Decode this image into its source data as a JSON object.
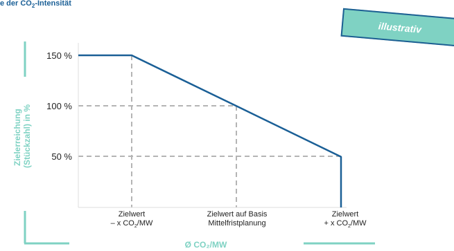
{
  "title": {
    "prefix": "e der CO",
    "subscript": "2",
    "suffix": "-Intensität"
  },
  "stamp": {
    "label": "illustrativ"
  },
  "chart_data": {
    "type": "line",
    "ylabel_lines": [
      "Zielerreichung",
      "(Stückzahl) in %"
    ],
    "xlabel": "Ø CO₂/MW",
    "yticks": [
      {
        "value": 150,
        "label": "150 %"
      },
      {
        "value": 100,
        "label": "100 %"
      },
      {
        "value": 50,
        "label": "50 %"
      }
    ],
    "categories": [
      {
        "line1": "Zielwert",
        "line2_prefix": "– x CO",
        "line2_sub": "2",
        "line2_suffix": "/MW"
      },
      {
        "line1": "Zielwert auf Basis",
        "line2_prefix": "Mittelfristplanung",
        "line2_sub": "",
        "line2_suffix": ""
      },
      {
        "line1": "Zielwert",
        "line2_prefix": "+ x CO",
        "line2_sub": "2",
        "line2_suffix": "/MW"
      }
    ],
    "series": [
      {
        "points": [
          {
            "x": "start",
            "y": 150
          },
          {
            "x": "Zielwert – x CO2/MW",
            "y": 150
          },
          {
            "x": "Zielwert auf Basis Mittelfristplanung",
            "y": 100
          },
          {
            "x": "Zielwert + x CO2/MW",
            "y": 50
          },
          {
            "x": "Zielwert + x CO2/MW",
            "y": 0
          }
        ]
      }
    ],
    "reference_lines": "dashed gray",
    "grid": false,
    "colors": {
      "line": "#1a5f96",
      "guides": "#b4b4b4",
      "axes": "#7fd2c3",
      "title": "#1a5f96"
    }
  }
}
